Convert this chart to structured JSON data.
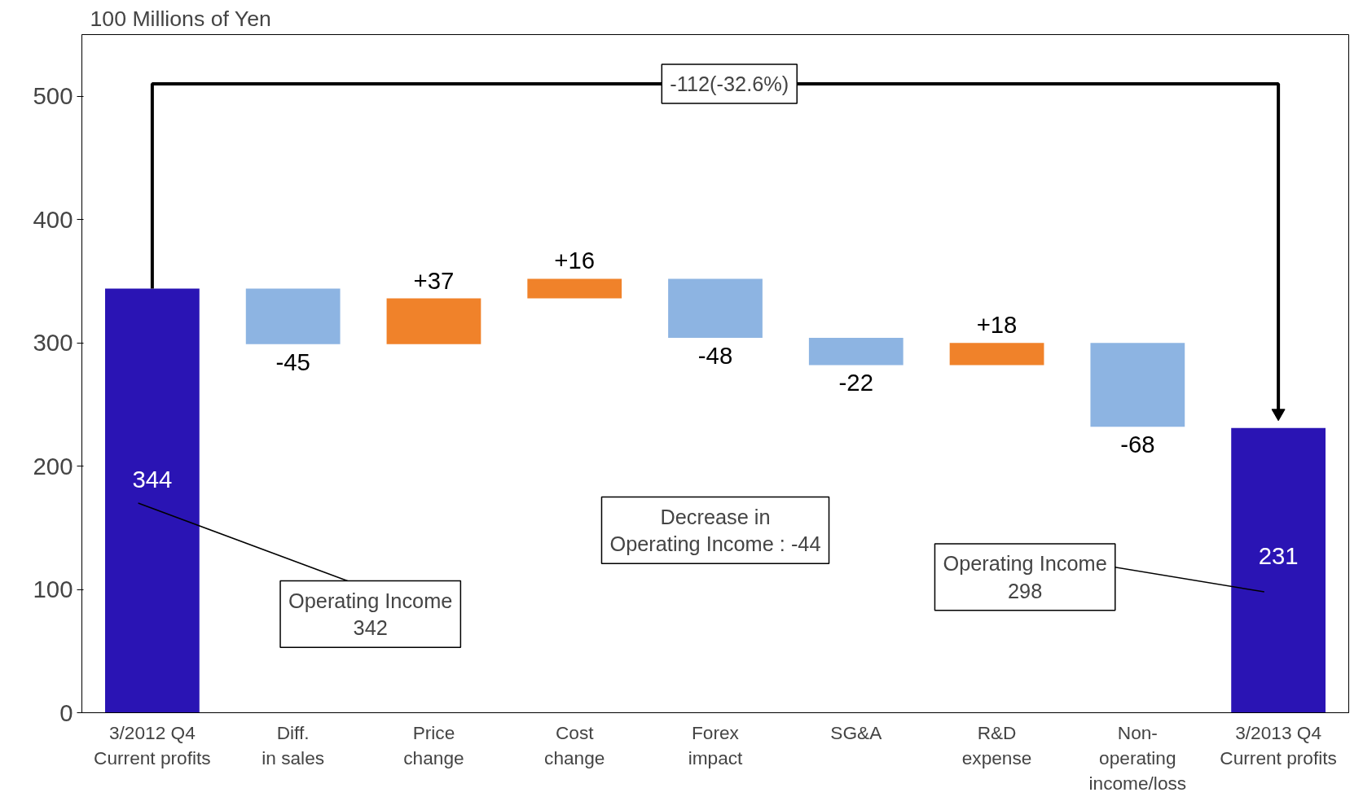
{
  "chart_data": {
    "type": "bar",
    "ylabel": "100 Millions of Yen",
    "categories": [
      "3/2012 Q4\nCurrent profits",
      "Diff.\nin sales",
      "Price\nchange",
      "Cost\nchange",
      "Forex\nimpact",
      "SG&A",
      "R&D\nexpense",
      "Non-\noperating\nincome/loss",
      "3/2013 Q4\nCurrent profits"
    ],
    "values": [
      344,
      -45,
      37,
      16,
      -48,
      -22,
      18,
      -68,
      231
    ],
    "base": [
      0,
      344,
      299,
      336,
      352,
      304,
      282,
      300,
      0
    ],
    "colors": [
      "#2a14b4",
      "#8db4e2",
      "#f0822a",
      "#f0822a",
      "#8db4e2",
      "#8db4e2",
      "#f0822a",
      "#8db4e2",
      "#2a14b4"
    ],
    "value_labels": [
      "344",
      "-45",
      "+37",
      "+16",
      "-48",
      "-22",
      "+18",
      "-68",
      "231"
    ],
    "ylim": [
      0,
      550
    ],
    "yticks": [
      0,
      100,
      200,
      300,
      400,
      500
    ],
    "grid": false,
    "annotations": [
      "-112(-32.6%)",
      "Decrease in\nOperating Income : -44",
      "Operating Income\n342",
      "Operating Income\n298"
    ]
  }
}
